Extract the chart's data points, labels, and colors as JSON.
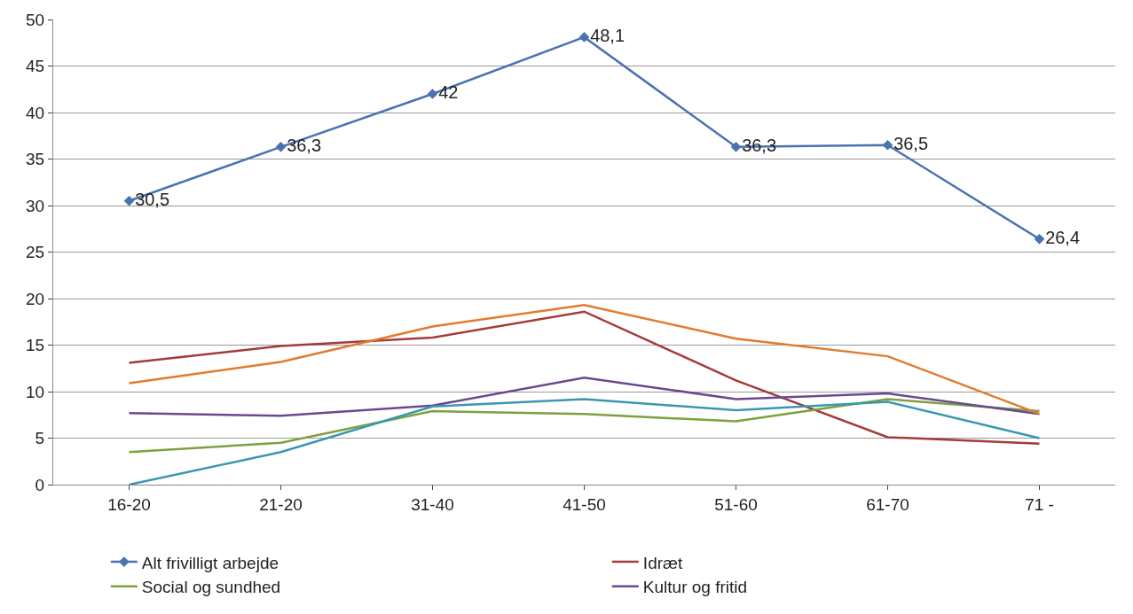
{
  "chart_data": {
    "type": "line",
    "categories": [
      "16-20",
      "21-20",
      "31-40",
      "41-50",
      "51-60",
      "61-70",
      "71 -"
    ],
    "series": [
      {
        "name": "Alt frivilligt arbejde",
        "color": "#4a72b0",
        "marker": "diamond",
        "values": [
          30.5,
          36.3,
          42,
          48.1,
          36.3,
          36.5,
          26.4
        ],
        "value_labels": [
          "30,5",
          "36,3",
          "42",
          "48,1",
          "36,3",
          "36,5",
          "26,4"
        ]
      },
      {
        "name": "Idræt",
        "color": "#a43a3a",
        "values": [
          13.1,
          14.9,
          15.8,
          18.6,
          11.2,
          5.1,
          4.4
        ]
      },
      {
        "name": "Social og sundhed",
        "color": "#7ea03e",
        "values": [
          3.5,
          4.5,
          7.9,
          7.6,
          6.8,
          9.2,
          7.9
        ]
      },
      {
        "name": "Kultur og fritid",
        "color": "#6a4a8e",
        "values": [
          7.7,
          7.4,
          8.5,
          11.5,
          9.2,
          9.8,
          7.6
        ]
      },
      {
        "color": "#e07b2e",
        "values": [
          10.9,
          13.2,
          17.0,
          19.3,
          15.7,
          13.8,
          7.6
        ]
      },
      {
        "color": "#3a97b0",
        "values": [
          0,
          3.5,
          8.4,
          9.2,
          8.0,
          8.9,
          5.0
        ]
      }
    ],
    "ylim": [
      0,
      50
    ],
    "yticks": [
      0,
      5,
      10,
      15,
      20,
      25,
      30,
      35,
      40,
      45,
      50
    ],
    "grid": "y",
    "legend": "bottom"
  }
}
